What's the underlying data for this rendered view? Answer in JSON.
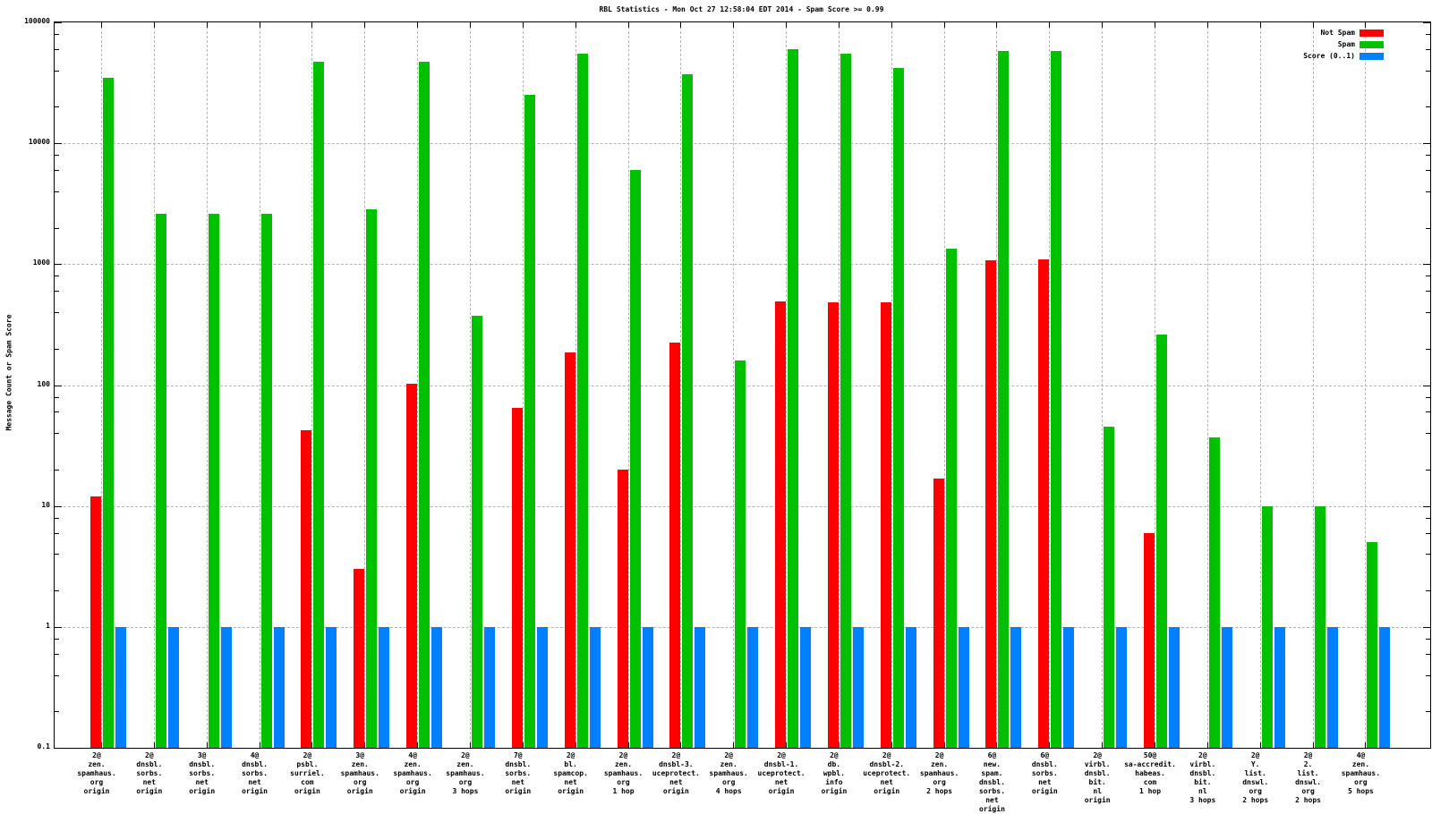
{
  "chart_data": {
    "type": "bar",
    "title": "RBL Statistics - Mon Oct 27 12:58:04 EDT 2014 - Spam Score >= 0.99",
    "ylabel": "Message Count or Spam Score",
    "xlabel": "",
    "y_scale": "log",
    "ylim": [
      0.1,
      100000
    ],
    "y_tick_labels": [
      "100000",
      "10000",
      "1000",
      "100",
      "10",
      "1",
      "0.1"
    ],
    "y_tick_values": [
      100000,
      10000,
      1000,
      100,
      10,
      1,
      0.1
    ],
    "grid": true,
    "legend_position": "top-right",
    "categories": [
      [
        "2@",
        "zen.",
        "spamhaus.",
        "org",
        "origin"
      ],
      [
        "2@",
        "dnsbl.",
        "sorbs.",
        "net",
        "origin"
      ],
      [
        "3@",
        "dnsbl.",
        "sorbs.",
        "net",
        "origin"
      ],
      [
        "4@",
        "dnsbl.",
        "sorbs.",
        "net",
        "origin"
      ],
      [
        "2@",
        "psbl.",
        "surriel.",
        "com",
        "origin"
      ],
      [
        "3@",
        "zen.",
        "spamhaus.",
        "org",
        "origin"
      ],
      [
        "4@",
        "zen.",
        "spamhaus.",
        "org",
        "origin"
      ],
      [
        "2@",
        "zen.",
        "spamhaus.",
        "org",
        "3 hops"
      ],
      [
        "7@",
        "dnsbl.",
        "sorbs.",
        "net",
        "origin"
      ],
      [
        "2@",
        "bl.",
        "spamcop.",
        "net",
        "origin"
      ],
      [
        "2@",
        "zen.",
        "spamhaus.",
        "org",
        "1 hop"
      ],
      [
        "2@",
        "dnsbl-3.",
        "uceprotect.",
        "net",
        "origin"
      ],
      [
        "2@",
        "zen.",
        "spamhaus.",
        "org",
        "4 hops"
      ],
      [
        "2@",
        "dnsbl-1.",
        "uceprotect.",
        "net",
        "origin"
      ],
      [
        "2@",
        "db.",
        "wpbl.",
        "info",
        "origin"
      ],
      [
        "2@",
        "dnsbl-2.",
        "uceprotect.",
        "net",
        "origin"
      ],
      [
        "2@",
        "zen.",
        "spamhaus.",
        "org",
        "2 hops"
      ],
      [
        "6@",
        "new.",
        "spam.",
        "dnsbl.",
        "sorbs.",
        "net",
        "origin"
      ],
      [
        "6@",
        "dnsbl.",
        "sorbs.",
        "net",
        "origin"
      ],
      [
        "2@",
        "virbl.",
        "dnsbl.",
        "bit.",
        "nl",
        "origin"
      ],
      [
        "50@",
        "sa-accredit.",
        "habeas.",
        "com",
        "1 hop"
      ],
      [
        "2@",
        "virbl.",
        "dnsbl.",
        "bit.",
        "nl",
        "3 hops"
      ],
      [
        "2@",
        "Y.",
        "list.",
        "dnswl.",
        "org",
        "2 hops"
      ],
      [
        "2@",
        "2.",
        "list.",
        "dnswl.",
        "org",
        "2 hops"
      ],
      [
        "4@",
        "zen.",
        "spamhaus.",
        "org",
        "5 hops"
      ]
    ],
    "series": [
      {
        "name": "Not Spam",
        "color": "#ff0000",
        "values": [
          12,
          null,
          null,
          null,
          42,
          3,
          103,
          null,
          65,
          185,
          20,
          225,
          null,
          490,
          485,
          480,
          17,
          1080,
          1090,
          null,
          6,
          null,
          null,
          null,
          null
        ]
      },
      {
        "name": "Spam",
        "color": "#00c000",
        "values": [
          35000,
          2600,
          2600,
          2600,
          47000,
          2850,
          47000,
          375,
          25000,
          55000,
          6000,
          37000,
          160,
          60000,
          55000,
          42000,
          1350,
          58000,
          58000,
          45,
          260,
          37,
          10,
          10,
          5
        ]
      },
      {
        "name": "Score (0..1)",
        "color": "#0080ff",
        "values": [
          1,
          1,
          1,
          1,
          1,
          1,
          1,
          1,
          1,
          1,
          1,
          1,
          1,
          1,
          1,
          1,
          1,
          1,
          1,
          1,
          1,
          1,
          1,
          1,
          1
        ]
      }
    ]
  }
}
